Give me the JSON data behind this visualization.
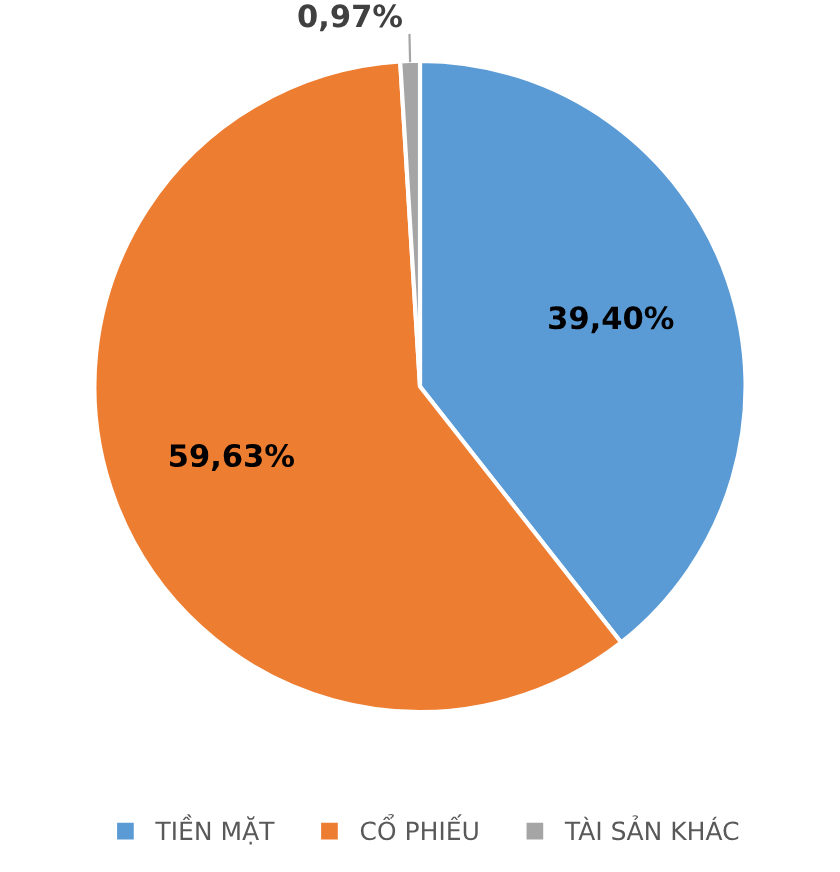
{
  "chart_data": {
    "type": "pie",
    "categories": [
      "TIỀN MẶT",
      "CỔ PHIẾU",
      "TÀI SẢN KHÁC"
    ],
    "values": [
      39.4,
      59.63,
      0.97
    ],
    "colors": [
      "#5b9bd5",
      "#ed7d31",
      "#a5a5a5"
    ],
    "value_labels": [
      "39,40%",
      "59,63%",
      "0,97%"
    ],
    "legend": "bottom"
  }
}
